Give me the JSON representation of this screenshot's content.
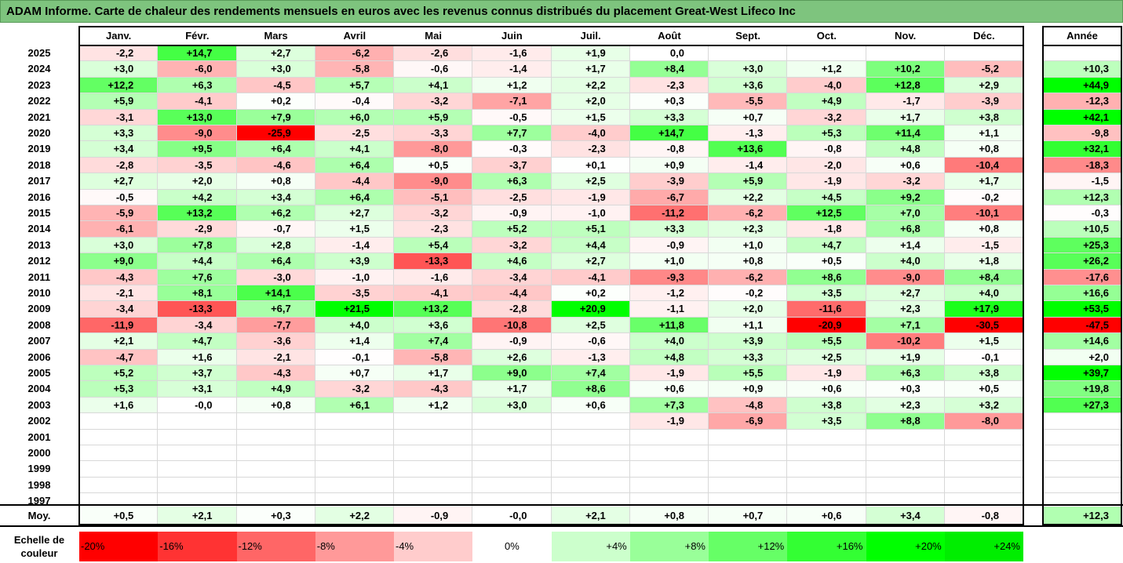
{
  "title": "ADAM Informe. Carte de chaleur des rendements mensuels en euros avec les revenus connus distribués du placement Great-West Lifeco Inc",
  "chart_data": {
    "type": "heatmap",
    "months": [
      "Janv.",
      "Févr.",
      "Mars",
      "Avril",
      "Mai",
      "Juin",
      "Juil.",
      "Août",
      "Sept.",
      "Oct.",
      "Nov.",
      "Déc."
    ],
    "year_header": "Année",
    "rows": [
      {
        "year": "2025",
        "values": [
          "-2,2",
          "+14,7",
          "+2,7",
          "-6,2",
          "-2,6",
          "-1,6",
          "+1,9",
          "0,0",
          "",
          "",
          "",
          ""
        ],
        "annual": ""
      },
      {
        "year": "2024",
        "values": [
          "+3,0",
          "-6,0",
          "+3,0",
          "-5,8",
          "-0,6",
          "-1,4",
          "+1,7",
          "+8,4",
          "+3,0",
          "+1,2",
          "+10,2",
          "-5,2"
        ],
        "annual": "+10,3"
      },
      {
        "year": "2023",
        "values": [
          "+12,2",
          "+6,3",
          "-4,5",
          "+5,7",
          "+4,1",
          "+1,2",
          "+2,2",
          "-2,3",
          "+3,6",
          "-4,0",
          "+12,8",
          "+2,9"
        ],
        "annual": "+44,9"
      },
      {
        "year": "2022",
        "values": [
          "+5,9",
          "-4,1",
          "+0,2",
          "-0,4",
          "-3,2",
          "-7,1",
          "+2,0",
          "+0,3",
          "-5,5",
          "+4,9",
          "-1,7",
          "-3,9"
        ],
        "annual": "-12,3"
      },
      {
        "year": "2021",
        "values": [
          "-3,1",
          "+13,0",
          "+7,9",
          "+6,0",
          "+5,9",
          "-0,5",
          "+1,5",
          "+3,3",
          "+0,7",
          "-3,2",
          "+1,7",
          "+3,8"
        ],
        "annual": "+42,1"
      },
      {
        "year": "2020",
        "values": [
          "+3,3",
          "-9,0",
          "-25,9",
          "-2,5",
          "-3,3",
          "+7,7",
          "-4,0",
          "+14,7",
          "-1,3",
          "+5,3",
          "+11,4",
          "+1,1"
        ],
        "annual": "-9,8"
      },
      {
        "year": "2019",
        "values": [
          "+3,4",
          "+9,5",
          "+6,4",
          "+4,1",
          "-8,0",
          "-0,3",
          "-2,3",
          "-0,8",
          "+13,6",
          "-0,8",
          "+4,8",
          "+0,8"
        ],
        "annual": "+32,1"
      },
      {
        "year": "2018",
        "values": [
          "-2,8",
          "-3,5",
          "-4,6",
          "+6,4",
          "+0,5",
          "-3,7",
          "+0,1",
          "+0,9",
          "-1,4",
          "-2,0",
          "+0,6",
          "-10,4"
        ],
        "annual": "-18,3"
      },
      {
        "year": "2017",
        "values": [
          "+2,7",
          "+2,0",
          "+0,8",
          "-4,4",
          "-9,0",
          "+6,3",
          "+2,5",
          "-3,9",
          "+5,9",
          "-1,9",
          "-3,2",
          "+1,7"
        ],
        "annual": "-1,5"
      },
      {
        "year": "2016",
        "values": [
          "-0,5",
          "+4,2",
          "+3,4",
          "+6,4",
          "-5,1",
          "-2,5",
          "-1,9",
          "-6,7",
          "+2,2",
          "+4,5",
          "+9,2",
          "-0,2"
        ],
        "annual": "+12,3"
      },
      {
        "year": "2015",
        "values": [
          "-5,9",
          "+13,2",
          "+6,2",
          "+2,7",
          "-3,2",
          "-0,9",
          "-1,0",
          "-11,2",
          "-6,2",
          "+12,5",
          "+7,0",
          "-10,1"
        ],
        "annual": "-0,3"
      },
      {
        "year": "2014",
        "values": [
          "-6,1",
          "-2,9",
          "-0,7",
          "+1,5",
          "-2,3",
          "+5,2",
          "+5,1",
          "+3,3",
          "+2,3",
          "-1,8",
          "+6,8",
          "+0,8"
        ],
        "annual": "+10,5"
      },
      {
        "year": "2013",
        "values": [
          "+3,0",
          "+7,8",
          "+2,8",
          "-1,4",
          "+5,4",
          "-3,2",
          "+4,4",
          "-0,9",
          "+1,0",
          "+4,7",
          "+1,4",
          "-1,5"
        ],
        "annual": "+25,3"
      },
      {
        "year": "2012",
        "values": [
          "+9,0",
          "+4,4",
          "+6,4",
          "+3,9",
          "-13,3",
          "+4,6",
          "+2,7",
          "+1,0",
          "+0,8",
          "+0,5",
          "+4,0",
          "+1,8"
        ],
        "annual": "+26,2"
      },
      {
        "year": "2011",
        "values": [
          "-4,3",
          "+7,6",
          "-3,0",
          "-1,0",
          "-1,6",
          "-3,4",
          "-4,1",
          "-9,3",
          "-6,2",
          "+8,6",
          "-9,0",
          "+8,4"
        ],
        "annual": "-17,6"
      },
      {
        "year": "2010",
        "values": [
          "-2,1",
          "+8,1",
          "+14,1",
          "-3,5",
          "-4,1",
          "-4,4",
          "+0,2",
          "-1,2",
          "-0,2",
          "+3,5",
          "+2,7",
          "+4,0"
        ],
        "annual": "+16,6"
      },
      {
        "year": "2009",
        "values": [
          "-3,4",
          "-13,3",
          "+6,7",
          "+21,5",
          "+13,2",
          "-2,8",
          "+20,9",
          "-1,1",
          "+2,0",
          "-11,6",
          "+2,3",
          "+17,9"
        ],
        "annual": "+53,5"
      },
      {
        "year": "2008",
        "values": [
          "-11,9",
          "-3,4",
          "-7,7",
          "+4,0",
          "+3,6",
          "-10,8",
          "+2,5",
          "+11,8",
          "+1,1",
          "-20,9",
          "+7,1",
          "-30,5"
        ],
        "annual": "-47,5"
      },
      {
        "year": "2007",
        "values": [
          "+2,1",
          "+4,7",
          "-3,6",
          "+1,4",
          "+7,4",
          "-0,9",
          "-0,6",
          "+4,0",
          "+3,9",
          "+5,5",
          "-10,2",
          "+1,5"
        ],
        "annual": "+14,6"
      },
      {
        "year": "2006",
        "values": [
          "-4,7",
          "+1,6",
          "-2,1",
          "-0,1",
          "-5,8",
          "+2,6",
          "-1,3",
          "+4,8",
          "+3,3",
          "+2,5",
          "+1,9",
          "-0,1"
        ],
        "annual": "+2,0"
      },
      {
        "year": "2005",
        "values": [
          "+5,2",
          "+3,7",
          "-4,3",
          "+0,7",
          "+1,7",
          "+9,0",
          "+7,4",
          "-1,9",
          "+5,5",
          "-1,9",
          "+6,3",
          "+3,8"
        ],
        "annual": "+39,7"
      },
      {
        "year": "2004",
        "values": [
          "+5,3",
          "+3,1",
          "+4,9",
          "-3,2",
          "-4,3",
          "+1,7",
          "+8,6",
          "+0,6",
          "+0,9",
          "+0,6",
          "+0,3",
          "+0,5"
        ],
        "annual": "+19,8"
      },
      {
        "year": "2003",
        "values": [
          "+1,6",
          "-0,0",
          "+0,8",
          "+6,1",
          "+1,2",
          "+3,0",
          "+0,6",
          "+7,3",
          "-4,8",
          "+3,8",
          "+2,3",
          "+3,2"
        ],
        "annual": "+27,3"
      },
      {
        "year": "2002",
        "values": [
          "",
          "",
          "",
          "",
          "",
          "",
          "",
          "-1,9",
          "-6,9",
          "+3,5",
          "+8,8",
          "-8,0"
        ],
        "annual": ""
      },
      {
        "year": "2001",
        "values": [
          "",
          "",
          "",
          "",
          "",
          "",
          "",
          "",
          "",
          "",
          "",
          ""
        ],
        "annual": ""
      },
      {
        "year": "2000",
        "values": [
          "",
          "",
          "",
          "",
          "",
          "",
          "",
          "",
          "",
          "",
          "",
          ""
        ],
        "annual": ""
      },
      {
        "year": "1999",
        "values": [
          "",
          "",
          "",
          "",
          "",
          "",
          "",
          "",
          "",
          "",
          "",
          ""
        ],
        "annual": ""
      },
      {
        "year": "1998",
        "values": [
          "",
          "",
          "",
          "",
          "",
          "",
          "",
          "",
          "",
          "",
          "",
          ""
        ],
        "annual": ""
      },
      {
        "year": "1997",
        "values": [
          "",
          "",
          "",
          "",
          "",
          "",
          "",
          "",
          "",
          "",
          "",
          ""
        ],
        "annual": ""
      }
    ],
    "average": {
      "label": "Moy.",
      "values": [
        "+0,5",
        "+2,1",
        "+0,3",
        "+2,2",
        "-0,9",
        "-0,0",
        "+2,1",
        "+0,8",
        "+0,7",
        "+0,6",
        "+3,4",
        "-0,8"
      ],
      "annual": "+12,3"
    },
    "color_scale": {
      "label": "Echelle de couleur",
      "stops": [
        {
          "label": "-20%",
          "value": -20,
          "color": "#ff0000"
        },
        {
          "label": "-16%",
          "value": -16,
          "color": "#ff3333"
        },
        {
          "label": "-12%",
          "value": -12,
          "color": "#ff6666"
        },
        {
          "label": "-8%",
          "value": -8,
          "color": "#ff9999"
        },
        {
          "label": "-4%",
          "value": -4,
          "color": "#ffcccc"
        },
        {
          "label": "0%",
          "value": 0,
          "color": "#ffffff"
        },
        {
          "label": "+4%",
          "value": 4,
          "color": "#ccffcc"
        },
        {
          "label": "+8%",
          "value": 8,
          "color": "#99ff99"
        },
        {
          "label": "+12%",
          "value": 12,
          "color": "#66ff66"
        },
        {
          "label": "+16%",
          "value": 16,
          "color": "#33ff33"
        },
        {
          "label": "+20%",
          "value": 20,
          "color": "#00ff00"
        },
        {
          "label": "+24%",
          "value": 24,
          "color": "#00ee00"
        }
      ]
    }
  }
}
